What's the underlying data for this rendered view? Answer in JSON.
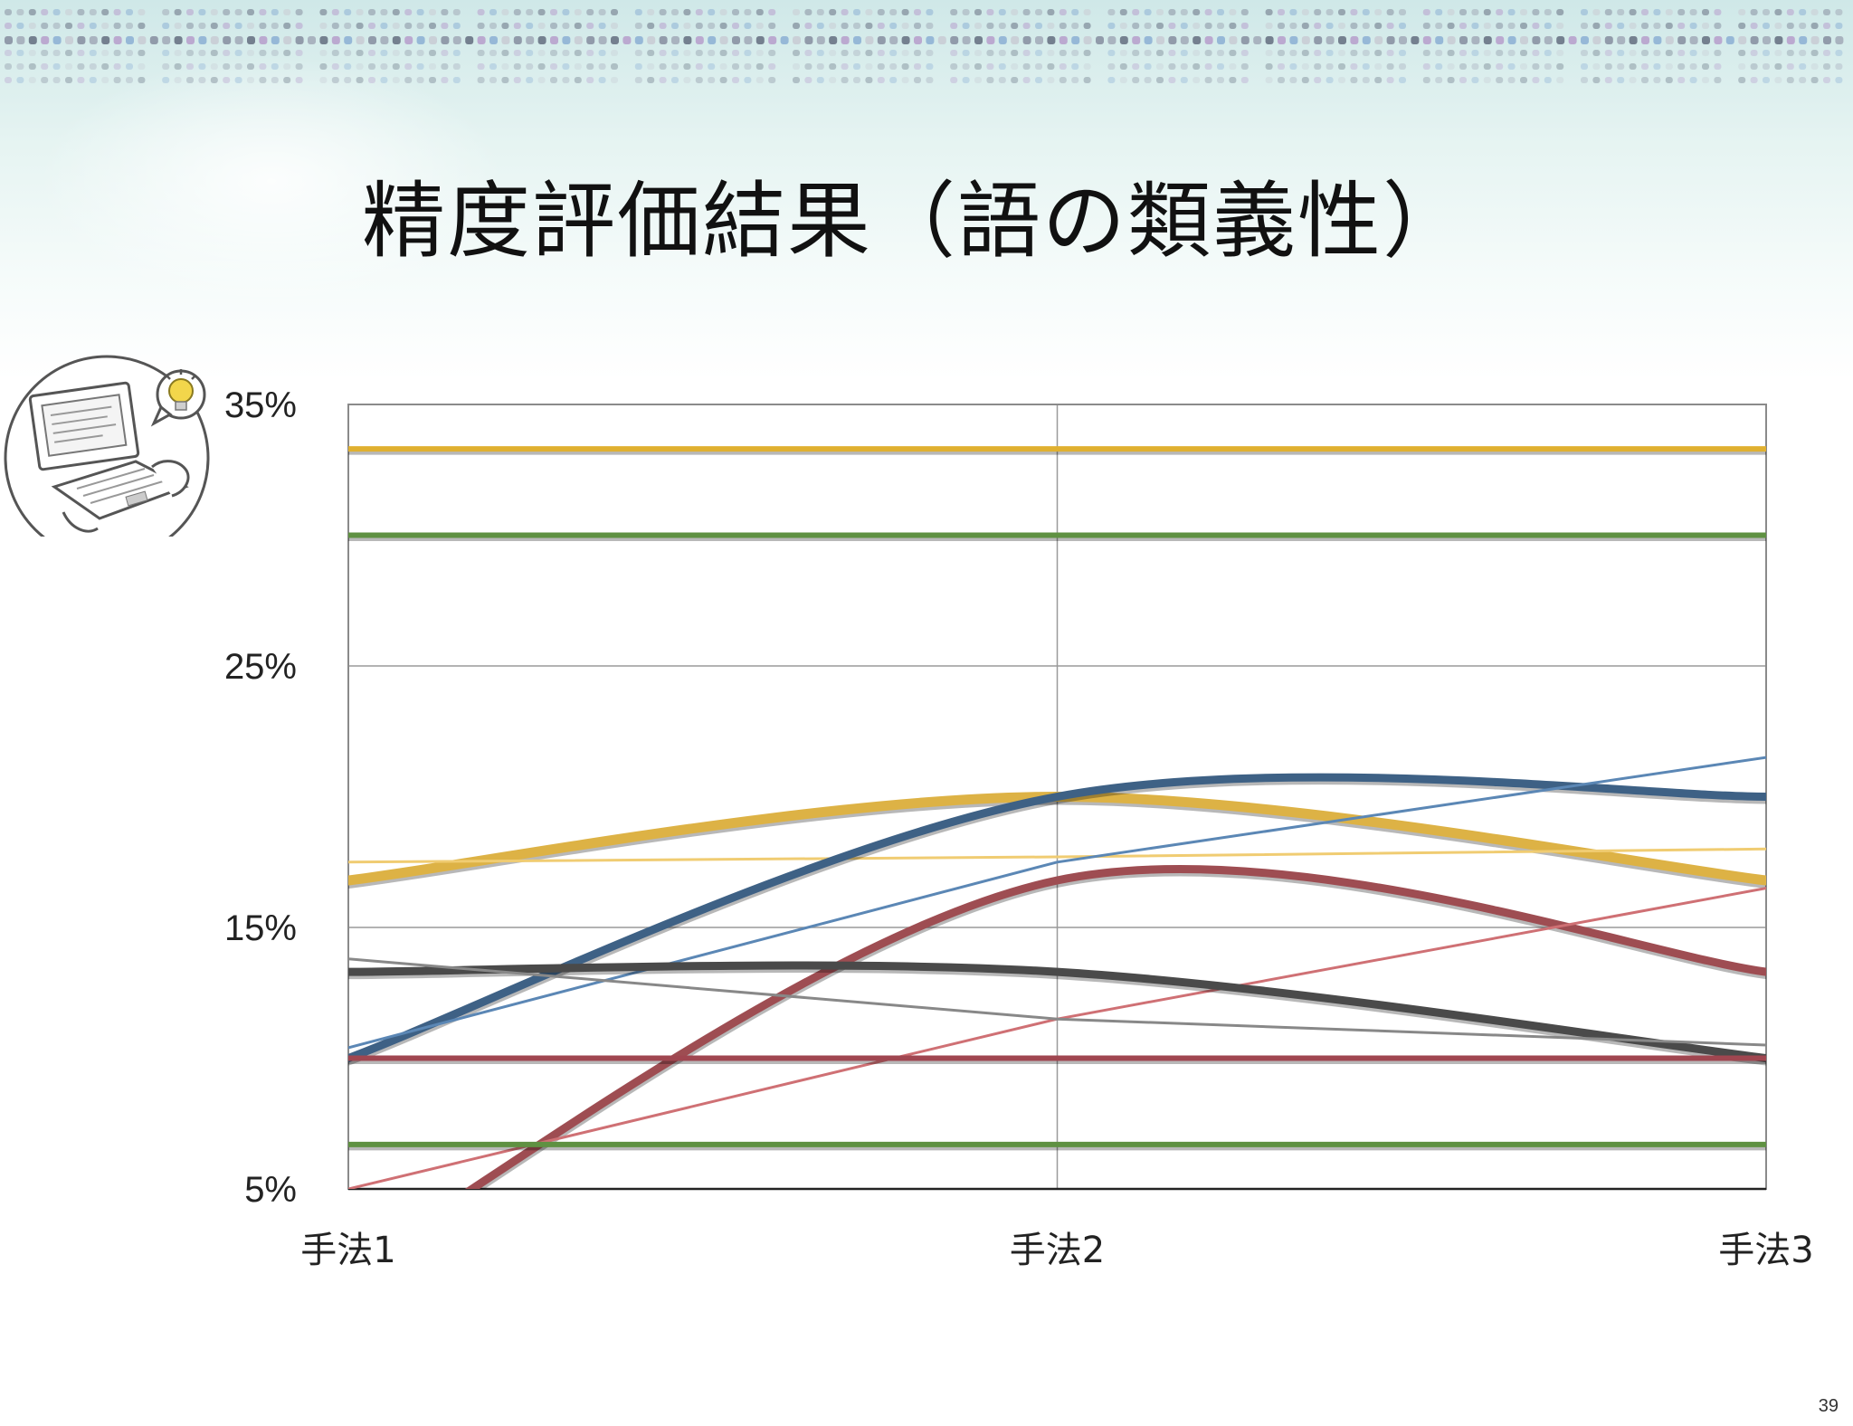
{
  "slide": {
    "title": "精度評価結果（語の類義性）",
    "page_number": "39"
  },
  "illustration": {
    "icon": "laptop-lightbulb-icon"
  },
  "chart_data": {
    "type": "line",
    "title": "",
    "xlabel": "",
    "ylabel": "",
    "categories": [
      "手法1",
      "手法2",
      "手法3"
    ],
    "yticks": [
      "5%",
      "15%",
      "25%",
      "35%"
    ],
    "ylim": [
      5,
      35
    ],
    "grid": true,
    "legend": "none",
    "series": [
      {
        "color": "#e0b030",
        "width": 6,
        "smooth": false,
        "values": [
          33.3,
          33.3,
          33.3
        ]
      },
      {
        "color": "#5f9142",
        "width": 6,
        "smooth": false,
        "values": [
          30.0,
          30.0,
          30.0
        ]
      },
      {
        "color": "#ddb245",
        "width": 11,
        "smooth": true,
        "values": [
          16.8,
          20.0,
          16.8
        ]
      },
      {
        "color": "#f0cc72",
        "width": 3,
        "smooth": false,
        "values": [
          17.5,
          17.7,
          18.0
        ]
      },
      {
        "color": "#3e6185",
        "width": 9,
        "smooth": true,
        "values": [
          10.0,
          20.0,
          20.0
        ]
      },
      {
        "color": "#5b87b5",
        "width": 3,
        "smooth": false,
        "values": [
          10.4,
          17.5,
          21.5
        ]
      },
      {
        "color": "#9e4d52",
        "width": 9,
        "smooth": true,
        "values": [
          2.0,
          16.8,
          13.3
        ]
      },
      {
        "color": "#cf7074",
        "width": 3,
        "smooth": false,
        "values": [
          5.0,
          11.5,
          16.5
        ]
      },
      {
        "color": "#4a4a4a",
        "width": 9,
        "smooth": true,
        "values": [
          13.3,
          13.3,
          10.0
        ]
      },
      {
        "color": "#888888",
        "width": 3,
        "smooth": false,
        "values": [
          13.8,
          11.5,
          10.5
        ]
      },
      {
        "color": "#a04650",
        "width": 6,
        "smooth": false,
        "values": [
          10.0,
          10.0,
          10.0
        ]
      },
      {
        "color": "#5f9142",
        "width": 6,
        "smooth": false,
        "values": [
          6.7,
          6.7,
          6.7
        ]
      }
    ]
  }
}
